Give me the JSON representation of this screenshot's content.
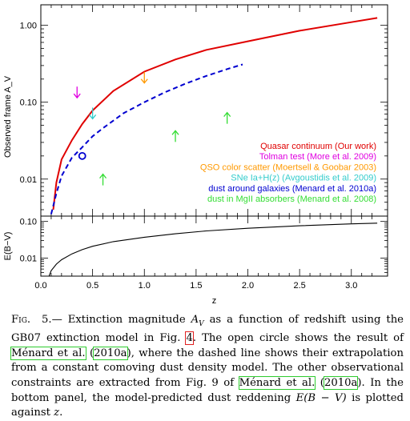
{
  "chart_data": [
    {
      "type": "line",
      "ylabel": "Observed frame A_V",
      "y_scale": "log",
      "xlim": [
        0,
        3.35
      ],
      "ylim": [
        0.0033,
        1.85
      ],
      "y_ticks": [
        0.01,
        0.1,
        1.0
      ],
      "y_tick_labels": [
        "0.01",
        "0.10",
        "1.00"
      ],
      "series": [
        {
          "name": "Quasar continuum (Our work)",
          "color": "#e00000",
          "style": "solid",
          "x": [
            0.12,
            0.15,
            0.2,
            0.3,
            0.4,
            0.5,
            0.7,
            1.0,
            1.3,
            1.6,
            2.0,
            2.5,
            3.0,
            3.25
          ],
          "y": [
            0.004,
            0.009,
            0.018,
            0.032,
            0.052,
            0.078,
            0.14,
            0.25,
            0.36,
            0.48,
            0.62,
            0.85,
            1.1,
            1.25
          ]
        },
        {
          "name": "dust around galaxies (Menard et al. 2010a)",
          "color": "#0000d0",
          "style": "dashed",
          "x": [
            0.1,
            0.15,
            0.2,
            0.3,
            0.4,
            0.5,
            0.6,
            0.8,
            1.0,
            1.2,
            1.4,
            1.6,
            1.8,
            1.95
          ],
          "y": [
            0.0035,
            0.0065,
            0.011,
            0.019,
            0.026,
            0.036,
            0.046,
            0.072,
            0.1,
            0.135,
            0.175,
            0.22,
            0.27,
            0.31
          ]
        }
      ],
      "markers": [
        {
          "kind": "circle",
          "x": 0.4,
          "y": 0.02,
          "color": "#0000d0"
        },
        {
          "kind": "arrow-down",
          "x": 0.35,
          "y": 0.135,
          "color": "#e000e0"
        },
        {
          "kind": "arrow-down",
          "x": 1.0,
          "y": 0.21,
          "color": "#ff9900"
        },
        {
          "kind": "arrow-down",
          "x": 0.5,
          "y": 0.072,
          "color": "#33cccc"
        },
        {
          "kind": "arrow-up",
          "x": 1.3,
          "y": 0.036,
          "color": "#33dd33"
        },
        {
          "kind": "arrow-up",
          "x": 1.8,
          "y": 0.062,
          "color": "#33dd33"
        },
        {
          "kind": "arrow-up",
          "x": 0.6,
          "y": 0.0098,
          "color": "#33dd33"
        }
      ],
      "legend": {
        "placement": "lower-right",
        "entries": [
          {
            "text": "Quasar continuum (Our work)",
            "color": "#e00000"
          },
          {
            "text": "Tolman test (More et al. 2009)",
            "color": "#e000e0"
          },
          {
            "text": "QSO color scatter (Moertsell & Goobar 2003)",
            "color": "#ff9900"
          },
          {
            "text": "SNe Ia+H(z) (Avgoustidis et al. 2009)",
            "color": "#33cccc"
          },
          {
            "text": "dust around galaxies (Menard et al. 2010a)",
            "color": "#0000d0"
          },
          {
            "text": "dust in MgII absorbers (Menard et al. 2008)",
            "color": "#33dd33"
          }
        ]
      }
    },
    {
      "type": "line",
      "ylabel": "E(B−V)",
      "xlabel": "z",
      "y_scale": "log",
      "xlim": [
        0,
        3.35
      ],
      "ylim": [
        0.0032,
        0.14
      ],
      "y_ticks": [
        0.01,
        0.1
      ],
      "y_tick_labels": [
        "0.01",
        "0.10"
      ],
      "x_ticks": [
        0.0,
        0.5,
        1.0,
        1.5,
        2.0,
        2.5,
        3.0
      ],
      "x_tick_labels": [
        "0.0",
        "0.5",
        "1.0",
        "1.5",
        "2.0",
        "2.5",
        "3.0"
      ],
      "series": [
        {
          "name": "E(B-V)",
          "color": "#000000",
          "style": "solid",
          "x": [
            0.08,
            0.1,
            0.15,
            0.2,
            0.3,
            0.4,
            0.5,
            0.7,
            1.0,
            1.3,
            1.6,
            2.0,
            2.5,
            3.0,
            3.25
          ],
          "y": [
            0.0032,
            0.0045,
            0.0068,
            0.009,
            0.013,
            0.017,
            0.021,
            0.028,
            0.037,
            0.046,
            0.055,
            0.065,
            0.076,
            0.086,
            0.09
          ]
        }
      ]
    }
  ],
  "caption": {
    "label": "Fig.",
    "number": "5.—",
    "seg1": " Extinction magnitude ",
    "av": "A",
    "av_sub": "V",
    "seg2": " as a function of redshift using the GB07 extinction model in Fig. ",
    "fig_ref": "4",
    "seg3": ". The open circle shows the result of ",
    "ref1_name": "Ménard et al.",
    "ref1_year": "2010a",
    "seg4": ", where the dashed line shows their extrapolation from a constant comoving dust density model. The other observational constraints are extracted from Fig. 9 of ",
    "ref2_name": "Ménard et al.",
    "ref2_year": "2010a",
    "seg5": ". In the bottom panel, the model-predicted dust reddening ",
    "ebv": "E(B − V)",
    "seg6": " is plotted against ",
    "z": "z",
    "seg7": "."
  }
}
